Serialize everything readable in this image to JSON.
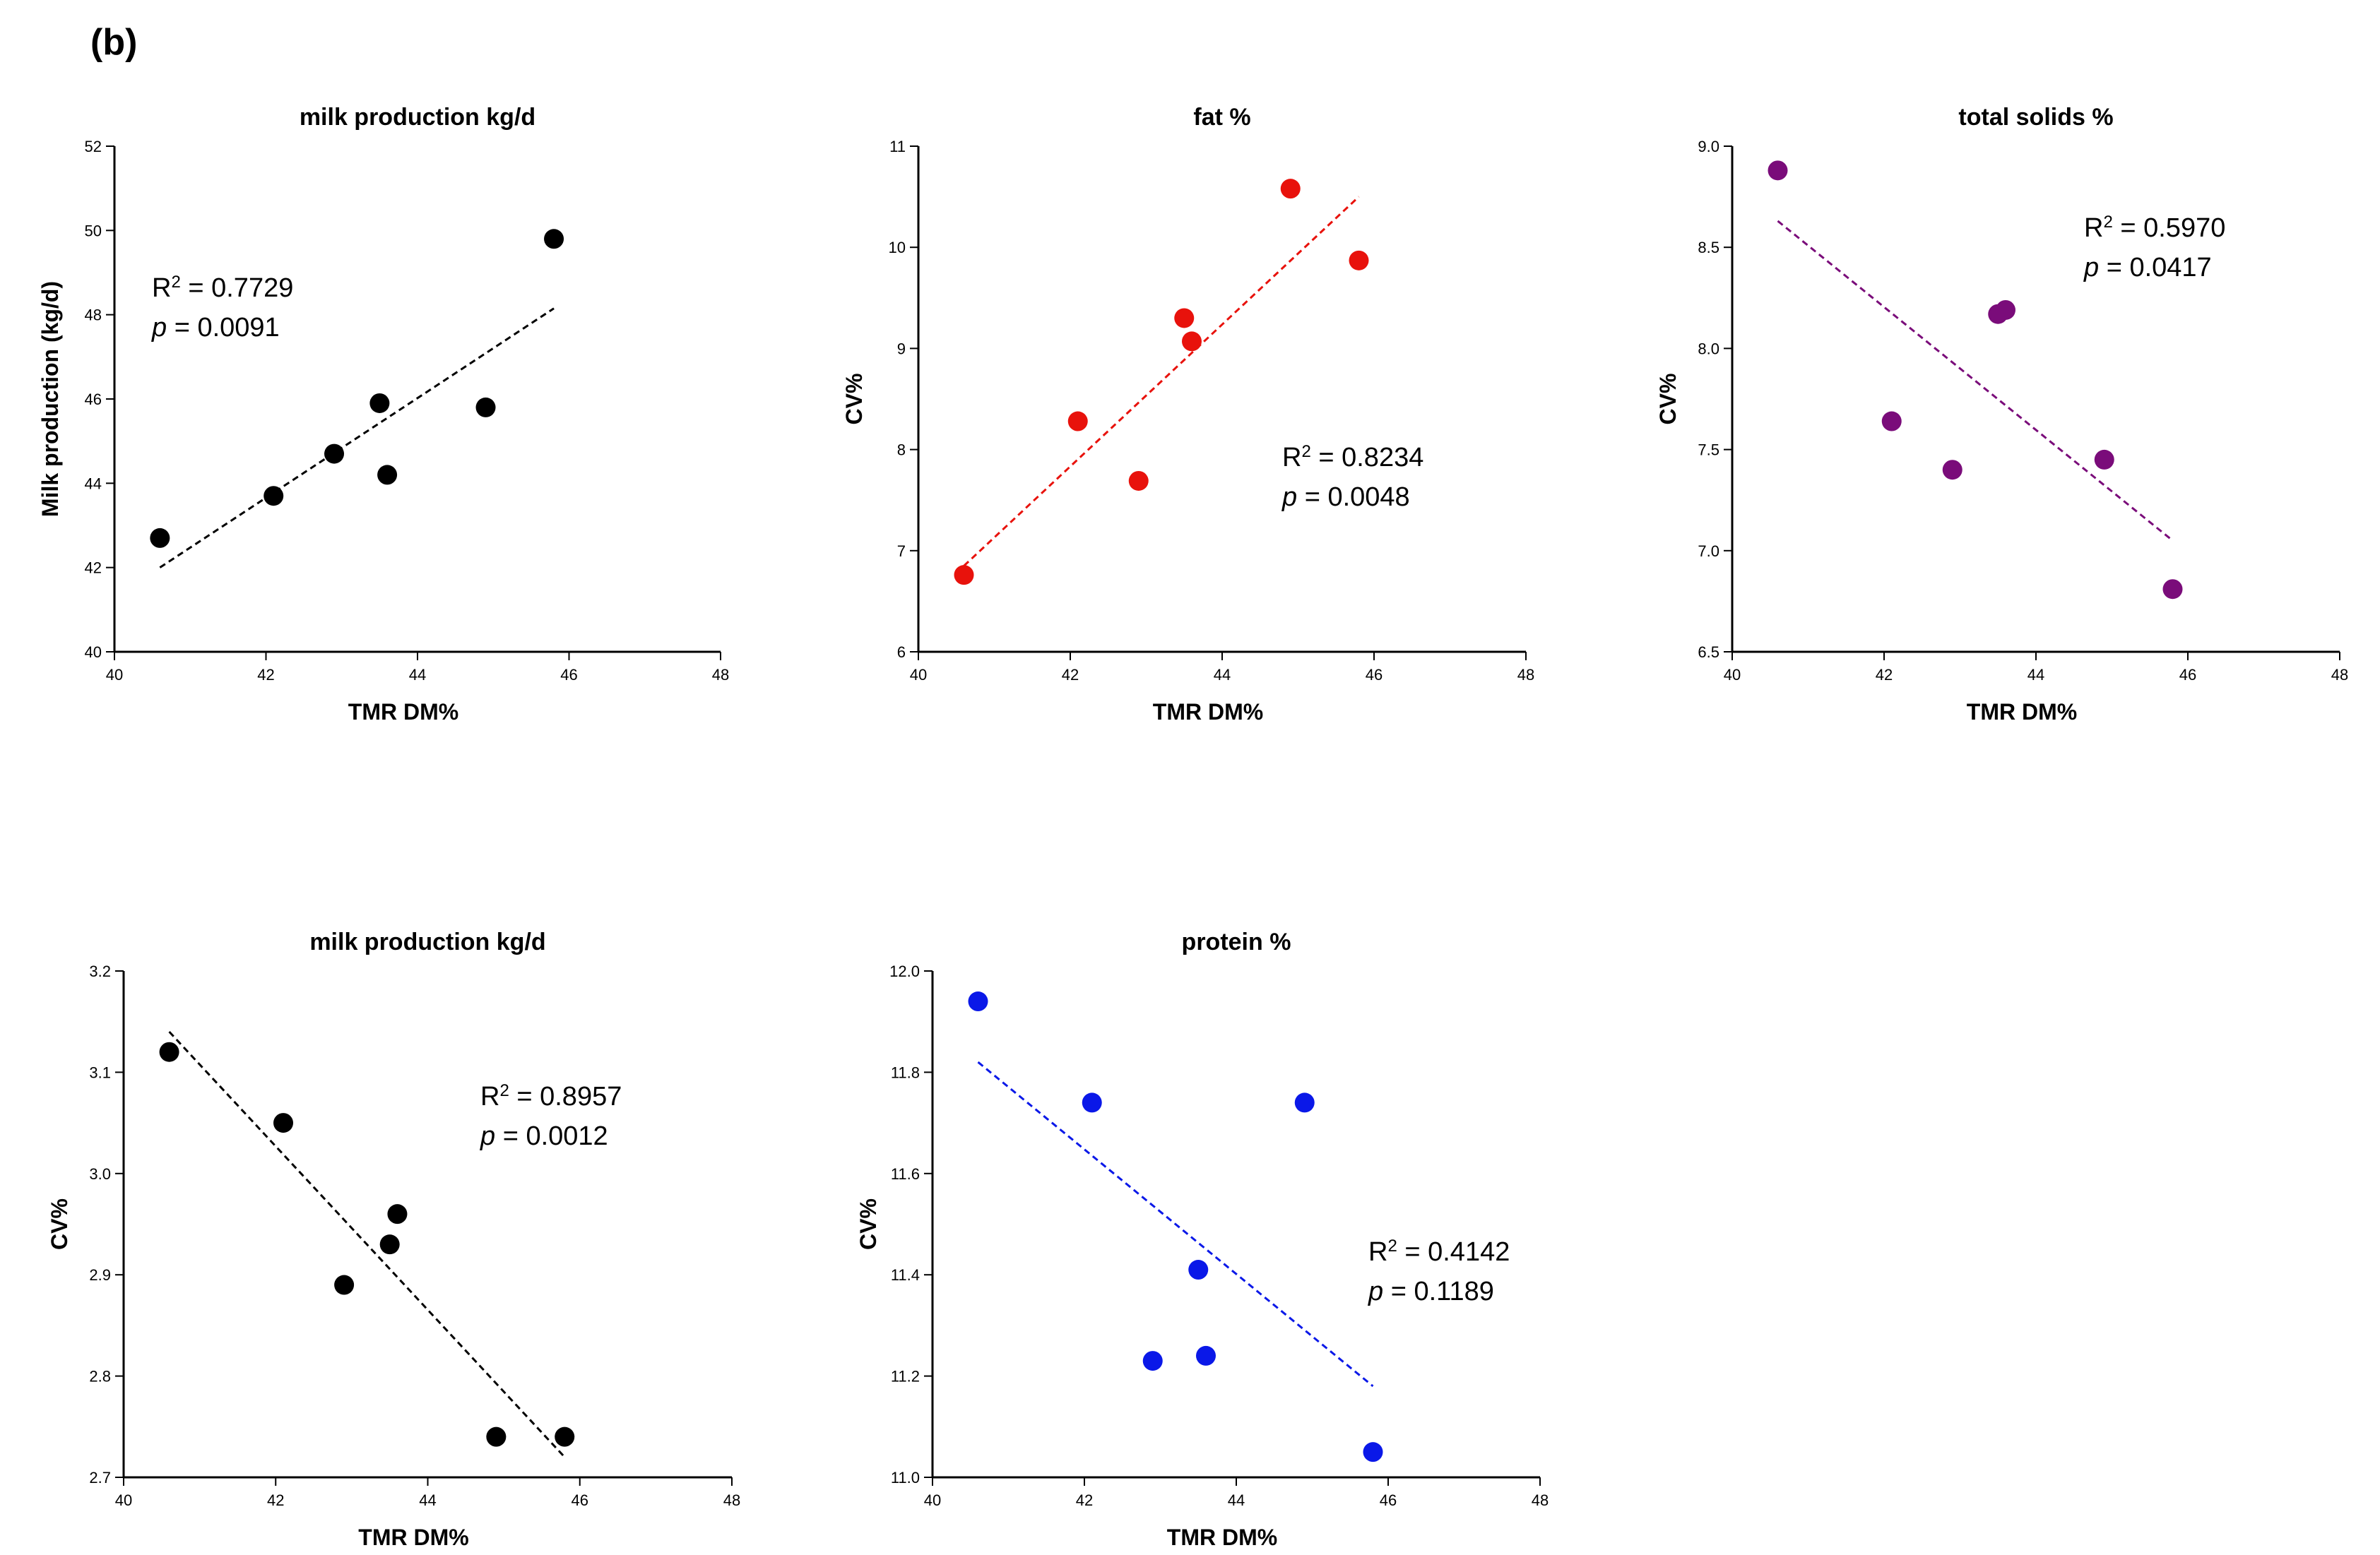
{
  "panel_label": "(b)",
  "chart_data": [
    {
      "type": "scatter",
      "title": "milk production kg/d",
      "xlabel": "TMR DM%",
      "ylabel": "Milk production (kg/d)",
      "xlim": [
        40,
        48
      ],
      "ylim": [
        40,
        52
      ],
      "xticks": [
        40,
        42,
        44,
        46,
        48
      ],
      "yticks": [
        40,
        42,
        44,
        46,
        48,
        50,
        52
      ],
      "ytick_labels": [
        "40",
        "42",
        "44",
        "46",
        "48",
        "50",
        "52"
      ],
      "x": [
        40.6,
        42.1,
        42.9,
        43.5,
        43.6,
        44.9,
        45.8
      ],
      "y": [
        42.7,
        43.7,
        44.7,
        45.9,
        44.2,
        45.8,
        49.8
      ],
      "fit": {
        "x": [
          40.6,
          45.8
        ],
        "y": [
          42.0,
          48.15
        ]
      },
      "r2_label": "R",
      "r2_value": " = 0.7729",
      "p_label": "p",
      "p_value": " = 0.0091",
      "color": "#000000"
    },
    {
      "type": "scatter",
      "title": "fat %",
      "xlabel": "TMR DM%",
      "ylabel": "CV%",
      "xlim": [
        40,
        48
      ],
      "ylim": [
        6,
        11
      ],
      "xticks": [
        40,
        42,
        44,
        46,
        48
      ],
      "yticks": [
        6,
        7,
        8,
        9,
        10,
        11
      ],
      "ytick_labels": [
        "6",
        "7",
        "8",
        "9",
        "10",
        "11"
      ],
      "x": [
        40.6,
        42.1,
        42.9,
        43.5,
        43.6,
        44.9,
        45.8
      ],
      "y": [
        6.76,
        8.28,
        7.69,
        9.3,
        9.07,
        10.58,
        9.87
      ],
      "fit": {
        "x": [
          40.6,
          45.8
        ],
        "y": [
          6.85,
          10.5
        ]
      },
      "r2_label": "R",
      "r2_value": " = 0.8234",
      "p_label": "p",
      "p_value": " = 0.0048",
      "color": "#e8120c"
    },
    {
      "type": "scatter",
      "title": "total solids %",
      "xlabel": "TMR DM%",
      "ylabel": "CV%",
      "xlim": [
        40,
        48
      ],
      "ylim": [
        6.5,
        9.0
      ],
      "xticks": [
        40,
        42,
        44,
        46,
        48
      ],
      "yticks": [
        6.5,
        7.0,
        7.5,
        8.0,
        8.5,
        9.0
      ],
      "ytick_labels": [
        "6.5",
        "7.0",
        "7.5",
        "8.0",
        "8.5",
        "9.0"
      ],
      "x": [
        40.6,
        42.1,
        42.9,
        43.5,
        43.6,
        44.9,
        45.8
      ],
      "y": [
        8.88,
        7.64,
        7.4,
        8.17,
        8.19,
        7.45,
        6.81
      ],
      "fit": {
        "x": [
          40.6,
          45.8
        ],
        "y": [
          8.63,
          7.05
        ]
      },
      "r2_label": "R",
      "r2_value": " = 0.5970",
      "p_label": "p",
      "p_value": " = 0.0417",
      "color": "#7a0c7a"
    },
    {
      "type": "scatter",
      "title": "milk production kg/d",
      "xlabel": "TMR DM%",
      "ylabel": "CV%",
      "xlim": [
        40,
        48
      ],
      "ylim": [
        2.7,
        3.2
      ],
      "xticks": [
        40,
        42,
        44,
        46,
        48
      ],
      "yticks": [
        2.7,
        2.8,
        2.9,
        3.0,
        3.1,
        3.2
      ],
      "ytick_labels": [
        "2.7",
        "2.8",
        "2.9",
        "3.0",
        "3.1",
        "3.2"
      ],
      "x": [
        40.6,
        42.1,
        42.9,
        43.5,
        43.6,
        44.9,
        45.8
      ],
      "y": [
        3.12,
        3.05,
        2.89,
        2.93,
        2.96,
        2.74,
        2.74
      ],
      "fit": {
        "x": [
          40.6,
          45.8
        ],
        "y": [
          3.14,
          2.72
        ]
      },
      "r2_label": "R",
      "r2_value": " = 0.8957",
      "p_label": "p",
      "p_value": " = 0.0012",
      "color": "#000000"
    },
    {
      "type": "scatter",
      "title": "protein %",
      "xlabel": "TMR DM%",
      "ylabel": "CV%",
      "xlim": [
        40,
        48
      ],
      "ylim": [
        11.0,
        12.0
      ],
      "xticks": [
        40,
        42,
        44,
        46,
        48
      ],
      "yticks": [
        11.0,
        11.2,
        11.4,
        11.6,
        11.8,
        12.0
      ],
      "ytick_labels": [
        "11.0",
        "11.2",
        "11.4",
        "11.6",
        "11.8",
        "12.0"
      ],
      "x": [
        40.6,
        42.1,
        42.9,
        43.5,
        43.6,
        44.9,
        45.8
      ],
      "y": [
        11.94,
        11.74,
        11.23,
        11.41,
        11.24,
        11.74,
        11.05
      ],
      "fit": {
        "x": [
          40.6,
          45.8
        ],
        "y": [
          11.82,
          11.18
        ]
      },
      "r2_label": "R",
      "r2_value": " = 0.4142",
      "p_label": "p",
      "p_value": " = 0.1189",
      "color": "#0a18e8"
    }
  ]
}
